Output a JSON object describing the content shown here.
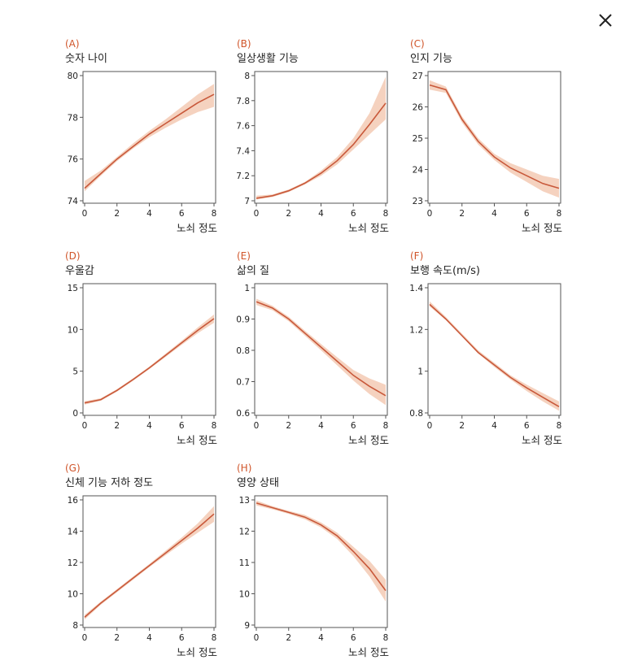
{
  "close_label": "close",
  "accent_color": "#c8583a",
  "band_color": "#f2c3a9",
  "letter_color": "#d0552a",
  "chart_data": [
    {
      "type": "line",
      "letter": "(A)",
      "title": "숫자 나이",
      "xlabel": "노쇠 정도",
      "ylabel": "",
      "xlim": [
        0,
        8
      ],
      "ylim": [
        74,
        80
      ],
      "xticks": [
        0,
        2,
        4,
        6,
        8
      ],
      "yticks": [
        74,
        76,
        78,
        80
      ],
      "x": [
        0,
        1,
        2,
        3,
        4,
        5,
        6,
        7,
        8
      ],
      "values": [
        74.6,
        75.3,
        76.0,
        76.6,
        77.2,
        77.7,
        78.2,
        78.7,
        79.1
      ],
      "lower": [
        74.45,
        75.2,
        75.9,
        76.5,
        77.05,
        77.5,
        77.9,
        78.25,
        78.5
      ],
      "upper": [
        74.95,
        75.45,
        76.1,
        76.75,
        77.35,
        77.9,
        78.5,
        79.1,
        79.6
      ]
    },
    {
      "type": "line",
      "letter": "(B)",
      "title": "일상생활 기능",
      "xlabel": "노쇠 정도",
      "ylabel": "",
      "xlim": [
        0,
        8
      ],
      "ylim": [
        7,
        8
      ],
      "xticks": [
        0,
        2,
        4,
        6,
        8
      ],
      "yticks": [
        7,
        7.2,
        7.4,
        7.6,
        7.8,
        8
      ],
      "x": [
        0,
        1,
        2,
        3,
        4,
        5,
        6,
        7,
        8
      ],
      "values": [
        7.02,
        7.04,
        7.08,
        7.14,
        7.22,
        7.32,
        7.45,
        7.61,
        7.78
      ],
      "lower": [
        7.01,
        7.03,
        7.07,
        7.13,
        7.2,
        7.29,
        7.41,
        7.53,
        7.65
      ],
      "upper": [
        7.04,
        7.05,
        7.09,
        7.15,
        7.24,
        7.35,
        7.5,
        7.7,
        7.99
      ]
    },
    {
      "type": "line",
      "letter": "(C)",
      "title": "인지 기능",
      "xlabel": "노쇠 정도",
      "ylabel": "",
      "xlim": [
        0,
        8
      ],
      "ylim": [
        23,
        27
      ],
      "xticks": [
        0,
        2,
        4,
        6,
        8
      ],
      "yticks": [
        23,
        24,
        25,
        26,
        27
      ],
      "x": [
        0,
        1,
        2,
        3,
        4,
        5,
        6,
        7,
        8
      ],
      "values": [
        26.7,
        26.55,
        25.6,
        24.9,
        24.4,
        24.05,
        23.8,
        23.55,
        23.4
      ],
      "lower": [
        26.55,
        26.45,
        25.5,
        24.8,
        24.3,
        23.9,
        23.6,
        23.3,
        23.1
      ],
      "upper": [
        26.85,
        26.65,
        25.7,
        25.0,
        24.5,
        24.2,
        24.0,
        23.8,
        23.7
      ]
    },
    {
      "type": "line",
      "letter": "(D)",
      "title": "우울감",
      "xlabel": "노쇠 정도",
      "ylabel": "",
      "xlim": [
        0,
        8
      ],
      "ylim": [
        0,
        15
      ],
      "xticks": [
        0,
        2,
        4,
        6,
        8
      ],
      "yticks": [
        0,
        5,
        10,
        15
      ],
      "x": [
        0,
        1,
        2,
        3,
        4,
        5,
        6,
        7,
        8
      ],
      "values": [
        1.2,
        1.6,
        2.7,
        4.0,
        5.4,
        6.9,
        8.4,
        9.9,
        11.3
      ],
      "lower": [
        1.0,
        1.45,
        2.55,
        3.85,
        5.25,
        6.7,
        8.15,
        9.55,
        10.8
      ],
      "upper": [
        1.4,
        1.75,
        2.85,
        4.15,
        5.55,
        7.1,
        8.65,
        10.25,
        11.8
      ]
    },
    {
      "type": "line",
      "letter": "(E)",
      "title": "삶의 질",
      "xlabel": "노쇠 정도",
      "ylabel": "",
      "xlim": [
        0,
        8
      ],
      "ylim": [
        0.6,
        1
      ],
      "xticks": [
        0,
        2,
        4,
        6,
        8
      ],
      "yticks": [
        0.6,
        0.7,
        0.8,
        0.9,
        1
      ],
      "x": [
        0,
        1,
        2,
        3,
        4,
        5,
        6,
        7,
        8
      ],
      "values": [
        0.955,
        0.935,
        0.9,
        0.855,
        0.81,
        0.765,
        0.72,
        0.685,
        0.655
      ],
      "lower": [
        0.945,
        0.928,
        0.893,
        0.847,
        0.8,
        0.752,
        0.703,
        0.66,
        0.625
      ],
      "upper": [
        0.965,
        0.942,
        0.907,
        0.863,
        0.82,
        0.778,
        0.737,
        0.71,
        0.69
      ]
    },
    {
      "type": "line",
      "letter": "(F)",
      "title": "보행 속도(m/s)",
      "xlabel": "노쇠 정도",
      "ylabel": "",
      "xlim": [
        0,
        8
      ],
      "ylim": [
        0.8,
        1.4
      ],
      "xticks": [
        0,
        2,
        4,
        6,
        8
      ],
      "yticks": [
        0.8,
        1,
        1.2,
        1.4
      ],
      "x": [
        0,
        1,
        2,
        3,
        4,
        5,
        6,
        7,
        8
      ],
      "values": [
        1.32,
        1.25,
        1.17,
        1.09,
        1.03,
        0.97,
        0.92,
        0.875,
        0.83
      ],
      "lower": [
        1.31,
        1.245,
        1.165,
        1.085,
        1.02,
        0.96,
        0.905,
        0.855,
        0.81
      ],
      "upper": [
        1.335,
        1.26,
        1.18,
        1.1,
        1.04,
        0.98,
        0.935,
        0.895,
        0.855
      ]
    },
    {
      "type": "line",
      "letter": "(G)",
      "title": "신체 기능 저하 정도",
      "xlabel": "노쇠 정도",
      "ylabel": "",
      "xlim": [
        0,
        8
      ],
      "ylim": [
        8,
        16
      ],
      "xticks": [
        0,
        2,
        4,
        6,
        8
      ],
      "yticks": [
        8,
        10,
        12,
        14,
        16
      ],
      "x": [
        0,
        1,
        2,
        3,
        4,
        5,
        6,
        7,
        8
      ],
      "values": [
        8.5,
        9.4,
        10.2,
        11.0,
        11.8,
        12.6,
        13.4,
        14.2,
        15.1
      ],
      "lower": [
        8.35,
        9.3,
        10.1,
        10.9,
        11.7,
        12.45,
        13.2,
        13.9,
        14.6
      ],
      "upper": [
        8.65,
        9.5,
        10.3,
        11.1,
        11.9,
        12.75,
        13.6,
        14.5,
        15.6
      ]
    },
    {
      "type": "line",
      "letter": "(H)",
      "title": "영양 상태",
      "xlabel": "노쇠 정도",
      "ylabel": "",
      "xlim": [
        0,
        8
      ],
      "ylim": [
        9,
        13
      ],
      "xticks": [
        0,
        2,
        4,
        6,
        8
      ],
      "yticks": [
        9,
        10,
        11,
        12,
        13
      ],
      "x": [
        0,
        1,
        2,
        3,
        4,
        5,
        6,
        7,
        8
      ],
      "values": [
        12.9,
        12.75,
        12.6,
        12.45,
        12.2,
        11.85,
        11.35,
        10.8,
        10.1
      ],
      "lower": [
        12.82,
        12.7,
        12.55,
        12.38,
        12.12,
        11.75,
        11.2,
        10.55,
        9.75
      ],
      "upper": [
        12.98,
        12.8,
        12.65,
        12.52,
        12.28,
        11.95,
        11.5,
        11.05,
        10.45
      ]
    }
  ]
}
